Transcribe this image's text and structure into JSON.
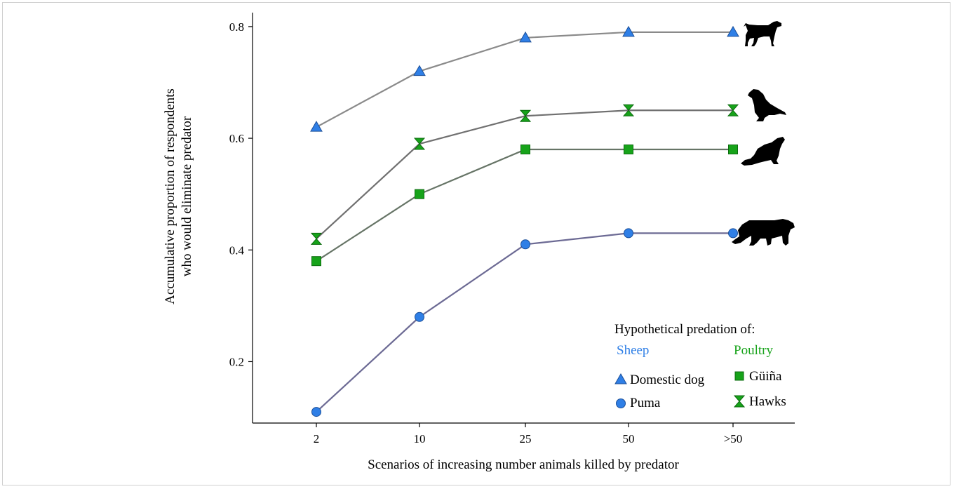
{
  "colors": {
    "sheep": "#2f7fe6",
    "poultry": "#17a31a",
    "line_dog": "#8a8a8a",
    "line_hawks": "#707070",
    "line_guina": "#667466",
    "line_puma": "#6c6a94",
    "silhouette": "#000000"
  },
  "chart_data": {
    "type": "line",
    "categories": [
      "2",
      "10",
      "25",
      "50",
      ">50"
    ],
    "xlabel": "Scenarios of increasing number animals killed by predator",
    "ylabel_line1": "Accumulative proportion of respondents",
    "ylabel_line2": "who would eliminate predator",
    "ylim": [
      0.09,
      0.825
    ],
    "yticks": [
      0.2,
      0.4,
      0.6,
      0.8
    ],
    "ytick_labels": [
      "0.2",
      "0.4",
      "0.6",
      "0.8"
    ],
    "grid": false,
    "series": [
      {
        "key": "dog",
        "name": "Domestic dog",
        "group": "Sheep",
        "marker": "triangle",
        "values": [
          0.62,
          0.72,
          0.78,
          0.79,
          0.79
        ],
        "silhouette": "dog-silhouette-icon"
      },
      {
        "key": "hawks",
        "name": "Hawks",
        "group": "Poultry",
        "marker": "hourglass",
        "values": [
          0.42,
          0.59,
          0.64,
          0.65,
          0.65
        ],
        "silhouette": "hawk-silhouette-icon"
      },
      {
        "key": "guina",
        "name": "Güiña",
        "group": "Poultry",
        "marker": "square",
        "values": [
          0.38,
          0.5,
          0.58,
          0.58,
          0.58
        ],
        "silhouette": "guina-silhouette-icon"
      },
      {
        "key": "puma",
        "name": "Puma",
        "group": "Sheep",
        "marker": "circle",
        "values": [
          0.11,
          0.28,
          0.41,
          0.43,
          0.43
        ],
        "silhouette": "puma-silhouette-icon"
      }
    ],
    "legend": {
      "title": "Hypothetical predation of:",
      "placement": "bottom-right",
      "group_sheep": "Sheep",
      "group_poultry": "Poultry"
    }
  }
}
